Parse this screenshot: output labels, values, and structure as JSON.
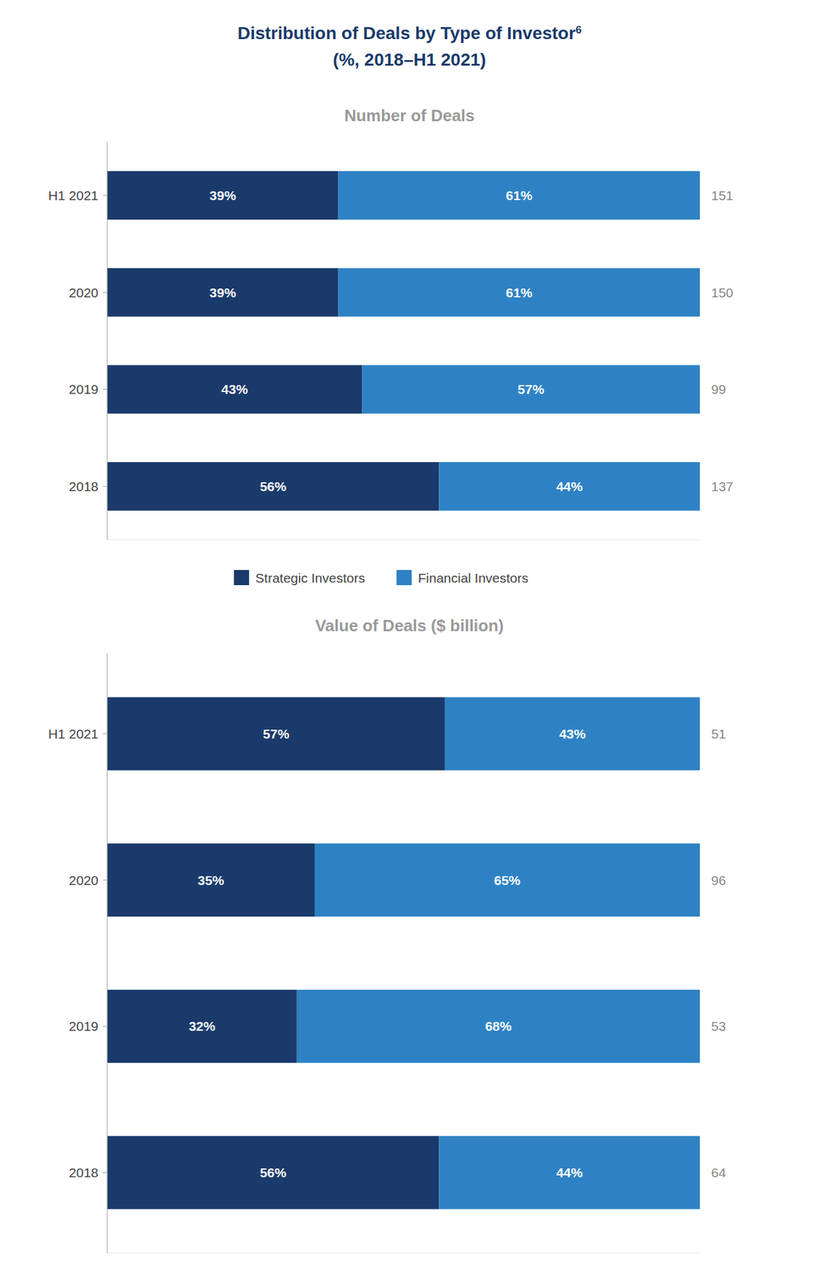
{
  "title": "Distribution of Deals by Type of Investor",
  "title_superscript": "6",
  "subtitle": "(%, 2018–H1 2021)",
  "chart_data": [
    {
      "type": "bar",
      "orientation": "horizontal",
      "stacked": true,
      "data_labels": true,
      "title": "Number of Deals",
      "categories": [
        "H1 2021",
        "2020",
        "2019",
        "2018"
      ],
      "series": [
        {
          "name": "Strategic Investors",
          "color": "#1a3a6b",
          "values": [
            39,
            39,
            43,
            56
          ],
          "value_labels": [
            "39%",
            "39%",
            "43%",
            "56%"
          ]
        },
        {
          "name": "Financial Investors",
          "color": "#2e82c4",
          "values": [
            61,
            61,
            57,
            44
          ],
          "value_labels": [
            "61%",
            "61%",
            "57%",
            "44%"
          ]
        }
      ],
      "totals": [
        151,
        150,
        99,
        137
      ],
      "xlim": [
        0,
        100
      ],
      "tick_labels": "y",
      "grid": false,
      "legend": "bottom"
    },
    {
      "type": "bar",
      "orientation": "horizontal",
      "stacked": true,
      "data_labels": true,
      "title": "Value of Deals ($ billion)",
      "categories": [
        "H1 2021",
        "2020",
        "2019",
        "2018"
      ],
      "series": [
        {
          "name": "Strategic Investors",
          "color": "#1a3a6b",
          "values": [
            57,
            35,
            32,
            56
          ],
          "value_labels": [
            "57%",
            "35%",
            "32%",
            "56%"
          ]
        },
        {
          "name": "Financial Investors",
          "color": "#2e82c4",
          "values": [
            43,
            65,
            68,
            44
          ],
          "value_labels": [
            "43%",
            "65%",
            "68%",
            "44%"
          ]
        }
      ],
      "totals": [
        51,
        96,
        53,
        64
      ],
      "xlim": [
        0,
        100
      ],
      "tick_labels": "y",
      "grid": false
    }
  ]
}
